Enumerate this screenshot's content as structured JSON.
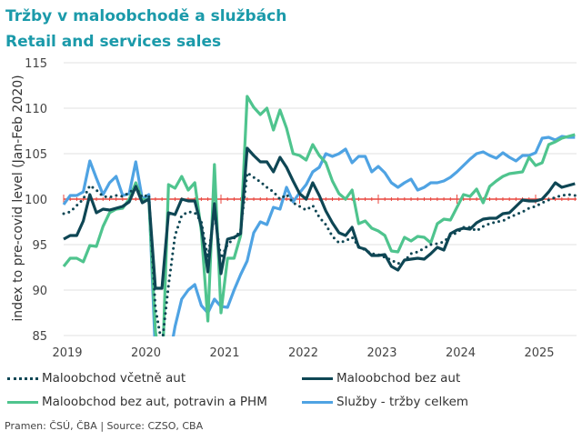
{
  "title_cz": "Tržby v maloobchodě a službách",
  "title_en": "Retail and services sales",
  "source": "Pramen: ČSÚ, ČBA  |  Source: CZSO, CBA",
  "chart_data": {
    "type": "line",
    "title": "Tržby v maloobchodě a službách / Retail and services sales",
    "xlabel": "",
    "ylabel": "index to pre-covid level (Jan-Feb 2020)",
    "ylim": [
      85,
      115
    ],
    "yticks": [
      "85",
      "90",
      "95",
      "100",
      "105",
      "110",
      "115"
    ],
    "xticks": [
      "2019",
      "2020",
      "2021",
      "2022",
      "2023",
      "2024",
      "2025"
    ],
    "x_start": "2019-01",
    "x_end": "2025-07",
    "frequency": "monthly",
    "grid": true,
    "reference_line": 100,
    "legend_position": "bottom",
    "colors": {
      "reference": "#e8473f",
      "dotted": "#0e4654",
      "dark": "#0e4654",
      "green": "#4fc48e",
      "blue": "#4fa3e3"
    },
    "series": [
      {
        "name": "Maloobchod včetně aut",
        "style": "dotted",
        "color": "#0e4654",
        "values": [
          98.4,
          98.6,
          99.3,
          100.0,
          101.5,
          101.0,
          100.3,
          100.2,
          100.4,
          100.3,
          100.7,
          101.3,
          100.2,
          100.5,
          88,
          84,
          90.5,
          96.0,
          98.2,
          98.6,
          98.5,
          97.5,
          93.5,
          98.5,
          93.5,
          95.0,
          95.7,
          96.5,
          102.9,
          102.4,
          101.9,
          101.3,
          100.8,
          100.0,
          100.5,
          99.6,
          99.2,
          98.8,
          99.3,
          98.0,
          97.2,
          95.9,
          95.2,
          95.4,
          95.8,
          94.8,
          94.4,
          94.0,
          93.9,
          93.6,
          93.3,
          92.9,
          93.2,
          94.0,
          94.2,
          94.6,
          95.0,
          95.1,
          95.3,
          96.0,
          96.3,
          96.9,
          96.9,
          96.5,
          97.0,
          97.3,
          97.5,
          97.6,
          98.0,
          98.3,
          98.6,
          99.0,
          99.2,
          99.6,
          99.9,
          100.2,
          100.4,
          100.5,
          100.4
        ]
      },
      {
        "name": "Maloobchod bez aut",
        "style": "solid",
        "color": "#0e4654",
        "values": [
          95.6,
          96.0,
          96.0,
          97.6,
          100.5,
          98.5,
          98.9,
          98.8,
          99.0,
          99.2,
          99.7,
          101.4,
          99.6,
          100.0,
          90.2,
          90.2,
          98.5,
          98.3,
          100.0,
          99.8,
          99.8,
          97.0,
          92.0,
          99.5,
          91.8,
          95.6,
          95.8,
          96.2,
          105.6,
          104.8,
          104.1,
          104.1,
          103.0,
          104.6,
          103.5,
          102.0,
          100.6,
          100.0,
          101.8,
          100.4,
          98.7,
          97.4,
          96.3,
          96.0,
          96.9,
          94.7,
          94.5,
          93.8,
          93.8,
          93.9,
          92.6,
          92.2,
          93.3,
          93.4,
          93.5,
          93.4,
          94.0,
          94.7,
          94.4,
          96.2,
          96.6,
          96.8,
          96.7,
          97.4,
          97.8,
          97.9,
          97.9,
          98.4,
          98.5,
          99.2,
          99.9,
          99.8,
          99.8,
          100.0,
          100.8,
          101.8,
          101.3,
          101.5,
          101.7
        ]
      },
      {
        "name": "Maloobchod bez aut, potravin a PHM",
        "style": "solid",
        "color": "#4fc48e",
        "values": [
          92.6,
          93.5,
          93.5,
          93.1,
          94.9,
          94.8,
          97.0,
          98.5,
          98.9,
          99.0,
          100.0,
          101.8,
          99.9,
          100.0,
          85.5,
          80,
          101.6,
          101.2,
          102.5,
          101.0,
          101.8,
          96.5,
          86.6,
          103.8,
          87.5,
          93.5,
          93.5,
          96.0,
          111.3,
          110.1,
          109.3,
          110.0,
          107.6,
          109.8,
          107.8,
          105.0,
          104.8,
          104.3,
          106.0,
          104.8,
          104.0,
          102.0,
          100.6,
          100.0,
          101.0,
          97.3,
          97.6,
          96.8,
          96.5,
          96.0,
          94.3,
          94.2,
          95.8,
          95.4,
          95.9,
          95.8,
          95.2,
          97.3,
          97.8,
          97.7,
          99.1,
          100.5,
          100.3,
          101.1,
          99.6,
          101.4,
          102.0,
          102.5,
          102.8,
          102.9,
          103.0,
          104.6,
          103.7,
          104.0,
          106.0,
          106.3,
          106.7,
          106.9,
          107.1
        ]
      },
      {
        "name": "Služby - tržby celkem",
        "style": "solid",
        "color": "#4fa3e3",
        "values": [
          99.4,
          100.4,
          100.4,
          100.8,
          104.2,
          102.3,
          100.5,
          101.8,
          102.5,
          100.4,
          100.6,
          104.1,
          100.0,
          100.5,
          83,
          78,
          82,
          86,
          89,
          90,
          90.6,
          88.3,
          87.5,
          89,
          88.2,
          88.1,
          90,
          91.7,
          93.2,
          96.3,
          97.5,
          97.2,
          99.1,
          98.9,
          101.3,
          99.7,
          100.7,
          101.6,
          103.0,
          103.5,
          105.0,
          104.7,
          105.0,
          105.5,
          104.0,
          104.7,
          104.7,
          103.0,
          103.6,
          102.9,
          101.8,
          101.3,
          101.8,
          102.2,
          101.0,
          101.3,
          101.8,
          101.8,
          102.0,
          102.4,
          103.0,
          103.7,
          104.4,
          105.0,
          105.2,
          104.8,
          104.5,
          105.1,
          104.6,
          104.2,
          104.8,
          104.8,
          105.1,
          106.7,
          106.8,
          106.5,
          106.9,
          106.8,
          106.8
        ]
      }
    ]
  }
}
